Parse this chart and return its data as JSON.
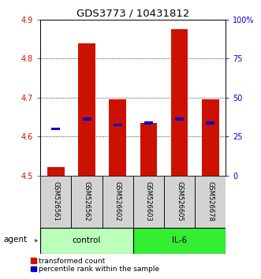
{
  "title": "GDS3773 / 10431812",
  "samples": [
    "GSM526561",
    "GSM526562",
    "GSM526602",
    "GSM526603",
    "GSM526605",
    "GSM526678"
  ],
  "red_bar_heights": [
    4.522,
    4.84,
    4.695,
    4.635,
    4.875,
    4.695
  ],
  "blue_marker_values": [
    4.62,
    4.645,
    4.63,
    4.635,
    4.645,
    4.635
  ],
  "y_min": 4.5,
  "y_max": 4.9,
  "y_ticks": [
    4.5,
    4.6,
    4.7,
    4.8,
    4.9
  ],
  "right_y_ticks": [
    0,
    25,
    50,
    75,
    100
  ],
  "right_y_labels": [
    "0",
    "25",
    "50",
    "75",
    "100%"
  ],
  "bar_color": "#cc1100",
  "marker_color": "#0000cc",
  "bar_width": 0.55,
  "tick_label_color_left": "#cc1100",
  "tick_label_color_right": "#0000cc",
  "title_fontsize": 9.5,
  "axis_fontsize": 7,
  "legend_fontsize": 6.5,
  "sample_label_fontsize": 6,
  "group_fontsize": 7.5,
  "agent_fontsize": 7.5,
  "control_color": "#bbffbb",
  "il6_color": "#33ee33",
  "sample_box_color": "#d3d3d3"
}
